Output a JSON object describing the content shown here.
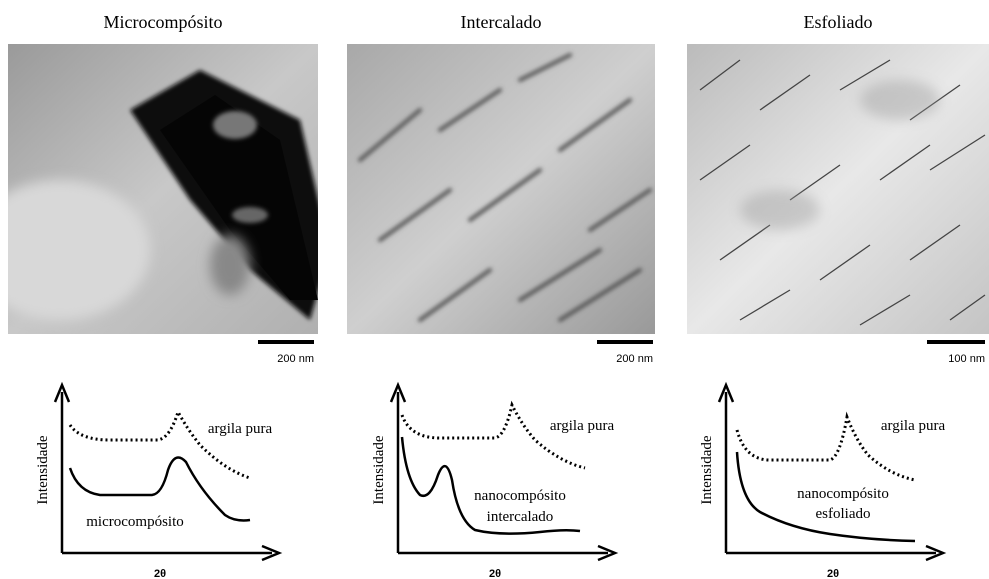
{
  "panels": [
    {
      "title": "Microcompósito",
      "scale_bar": "200 nm",
      "y_label": "Intensidade",
      "x_label": "2θ",
      "pure_label": "argila pura",
      "composite_label": [
        "microcompósito"
      ]
    },
    {
      "title": "Intercalado",
      "scale_bar": "200 nm",
      "y_label": "Intensidade",
      "x_label": "2θ",
      "pure_label": "argila pura",
      "composite_label": [
        "nanocompósito",
        "intercalado"
      ]
    },
    {
      "title": "Esfoliado",
      "scale_bar": "100 nm",
      "y_label": "Intensidade",
      "x_label": "2θ",
      "pure_label": "argila pura",
      "composite_label": [
        "nanocompósito",
        "esfoliado"
      ]
    }
  ]
}
